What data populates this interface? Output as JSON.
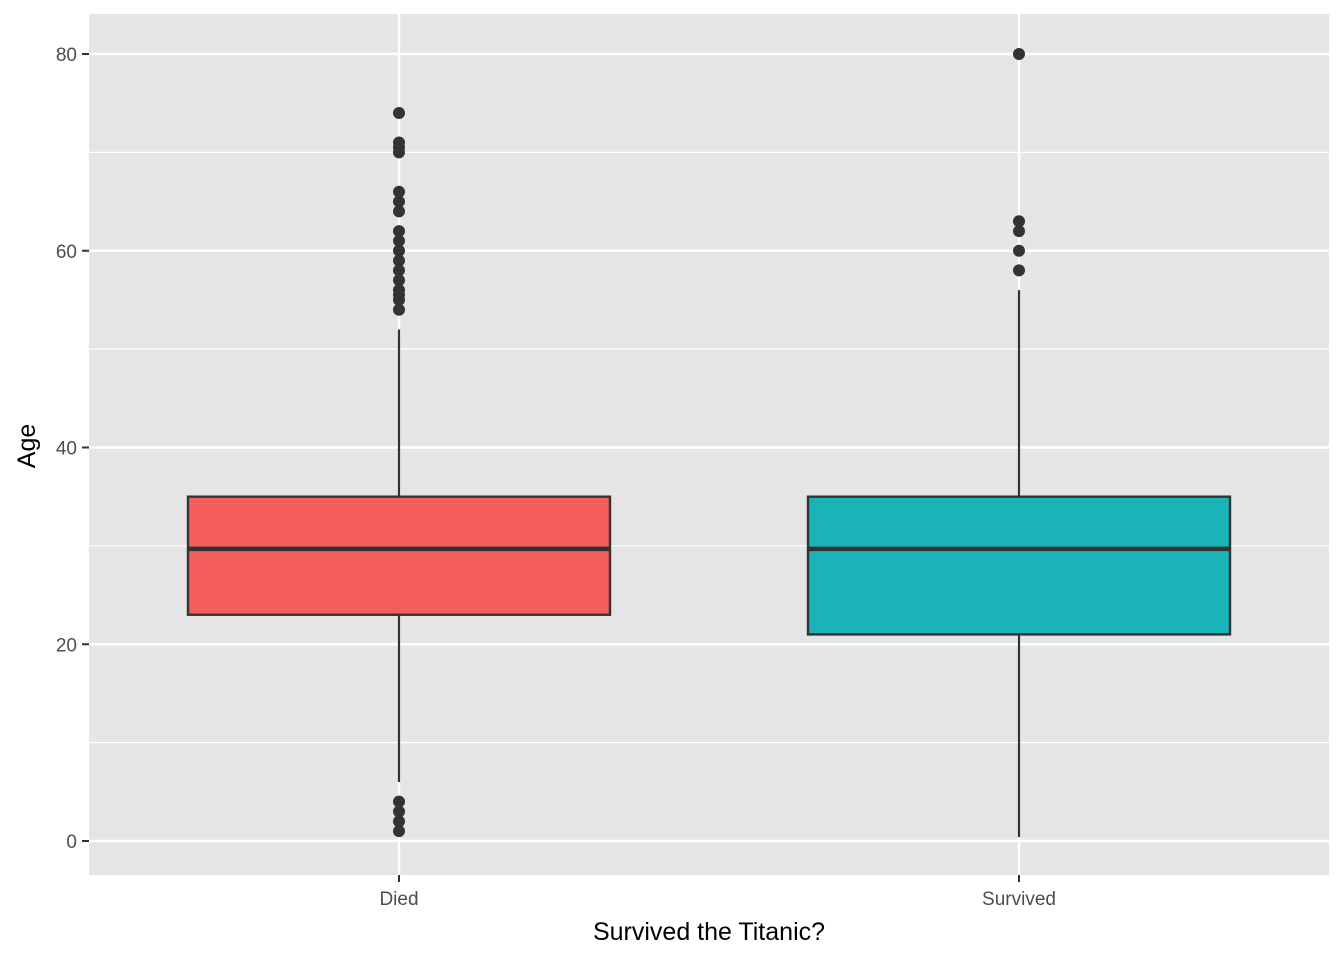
{
  "chart_data": {
    "type": "boxplot",
    "title": "",
    "xlabel": "Survived the Titanic?",
    "ylabel": "Age",
    "ylim": [
      -3.5,
      84
    ],
    "y_major_ticks": [
      0,
      20,
      40,
      60,
      80
    ],
    "y_minor_ticks": [
      10,
      30,
      50,
      70
    ],
    "y_tick_labels": [
      "0",
      "20",
      "40",
      "60",
      "80"
    ],
    "grid": true,
    "legend": "none",
    "background_color": "#e5e5e5",
    "grid_color": "#ffffff",
    "categories": [
      "Died",
      "Survived"
    ],
    "series": [
      {
        "category": "Died",
        "color": "#f35e5a",
        "whisker_low": 6,
        "q1": 23,
        "median": 29.7,
        "q3": 35,
        "whisker_high": 52,
        "outliers": [
          1,
          2,
          3,
          4,
          54,
          55,
          55.5,
          56,
          57,
          58,
          59,
          60,
          61,
          62,
          64,
          65,
          66,
          70,
          70.5,
          71,
          74
        ]
      },
      {
        "category": "Survived",
        "color": "#19b3b8",
        "whisker_low": 0.4,
        "q1": 21,
        "median": 29.7,
        "q3": 35,
        "whisker_high": 56,
        "outliers": [
          58,
          60,
          62,
          63,
          80
        ]
      }
    ]
  }
}
